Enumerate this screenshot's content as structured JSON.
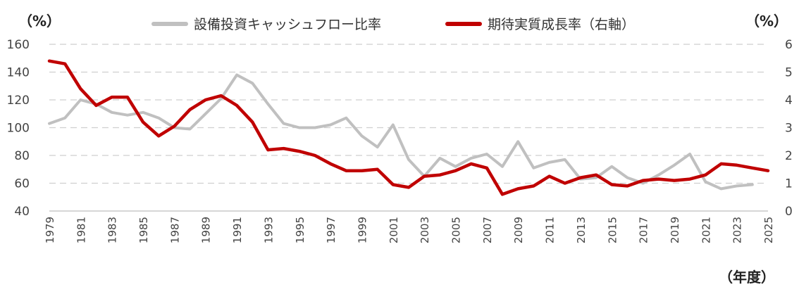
{
  "chart_data": {
    "type": "line",
    "left_axis_unit": "（%）",
    "right_axis_unit": "（%）",
    "x_axis_unit": "（年度）",
    "left_ylim": [
      40,
      160
    ],
    "left_yticks": [
      40,
      60,
      80,
      100,
      120,
      140,
      160
    ],
    "right_ylim": [
      0,
      6
    ],
    "right_yticks": [
      0,
      1,
      2,
      3,
      4,
      5,
      6
    ],
    "xlim": [
      1979,
      2025
    ],
    "xtick_labels": [
      "1979",
      "1981",
      "1983",
      "1985",
      "1987",
      "1989",
      "1991",
      "1993",
      "1995",
      "1997",
      "1999",
      "2001",
      "2003",
      "2005",
      "2007",
      "2009",
      "2011",
      "2013",
      "2015",
      "2017",
      "2019",
      "2021",
      "2023",
      "2025"
    ],
    "grid": "horizontal dashed",
    "legend_position": "top-center",
    "series": [
      {
        "name": "設備投資キャッシュフロー比率",
        "axis": "left",
        "color": "#c0c0c0",
        "x": [
          1979,
          1980,
          1981,
          1982,
          1983,
          1984,
          1985,
          1986,
          1987,
          1988,
          1989,
          1990,
          1991,
          1992,
          1993,
          1994,
          1995,
          1996,
          1997,
          1998,
          1999,
          2000,
          2001,
          2002,
          2003,
          2004,
          2005,
          2006,
          2007,
          2008,
          2009,
          2010,
          2011,
          2012,
          2013,
          2014,
          2015,
          2016,
          2017,
          2018,
          2019,
          2020,
          2021,
          2022,
          2023,
          2024
        ],
        "values": [
          103,
          107,
          120,
          117,
          111,
          109,
          111,
          107,
          100,
          99,
          110,
          121,
          138,
          132,
          117,
          103,
          100,
          100,
          102,
          107,
          94,
          86,
          102,
          77,
          65,
          78,
          72,
          78,
          81,
          72,
          90,
          71,
          75,
          77,
          63,
          64,
          72,
          64,
          60,
          66,
          73,
          81,
          61,
          56,
          58,
          59
        ]
      },
      {
        "name": "期待実質成長率（右軸）",
        "axis": "right",
        "color": "#c00000",
        "x": [
          1979,
          1980,
          1981,
          1982,
          1983,
          1984,
          1985,
          1986,
          1987,
          1988,
          1989,
          1990,
          1991,
          1992,
          1993,
          1994,
          1995,
          1996,
          1997,
          1998,
          1999,
          2000,
          2001,
          2002,
          2003,
          2004,
          2005,
          2006,
          2007,
          2008,
          2009,
          2010,
          2011,
          2012,
          2013,
          2014,
          2015,
          2016,
          2017,
          2018,
          2019,
          2020,
          2021,
          2022,
          2023,
          2024,
          2025
        ],
        "values": [
          5.4,
          5.3,
          4.4,
          3.8,
          4.1,
          4.1,
          3.2,
          2.7,
          3.05,
          3.65,
          4.0,
          4.15,
          3.8,
          3.2,
          2.2,
          2.25,
          2.15,
          2.0,
          1.7,
          1.45,
          1.45,
          1.5,
          0.95,
          0.85,
          1.25,
          1.3,
          1.45,
          1.7,
          1.55,
          0.6,
          0.8,
          0.9,
          1.25,
          1.0,
          1.2,
          1.3,
          0.95,
          0.9,
          1.1,
          1.15,
          1.1,
          1.15,
          1.3,
          1.7,
          1.65,
          1.55,
          1.45
        ]
      }
    ]
  }
}
